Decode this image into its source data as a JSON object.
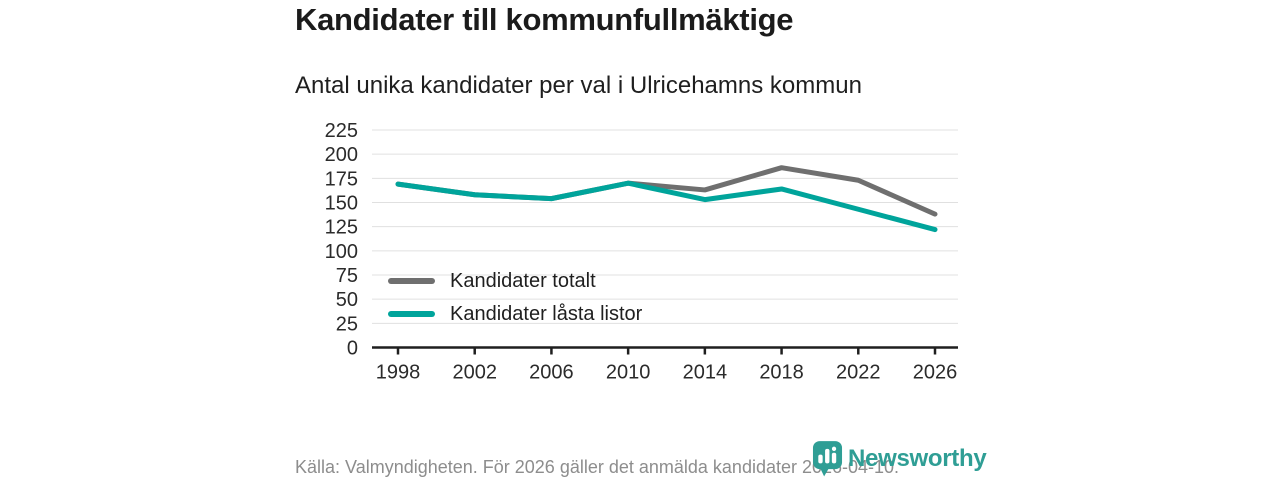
{
  "chart_data": {
    "type": "line",
    "title": "Kandidater till kommunfullmäktige",
    "subtitle": "Antal unika kandidater per val i Ulricehamns kommun",
    "x": [
      "1998",
      "2002",
      "2006",
      "2010",
      "2014",
      "2018",
      "2022",
      "2026"
    ],
    "series": [
      {
        "name": "Kandidater totalt",
        "color": "#6f6f6f",
        "values": [
          169,
          158,
          154,
          170,
          163,
          186,
          173,
          138
        ]
      },
      {
        "name": "Kandidater låsta listor",
        "color": "#00a49b",
        "values": [
          169,
          158,
          154,
          170,
          153,
          164,
          143,
          122
        ]
      }
    ],
    "xlabel": "",
    "ylabel": "",
    "ylim": [
      0,
      225
    ],
    "ytick_step": 25,
    "grid": true,
    "legend_position": "inside-bottom-left"
  },
  "footer": {
    "source": "Källa: Valmyndigheten. För 2026 gäller det anmälda kandidater 2026-04-10.",
    "brand": "Newsworthy",
    "brand_color": "#2f9e95"
  }
}
